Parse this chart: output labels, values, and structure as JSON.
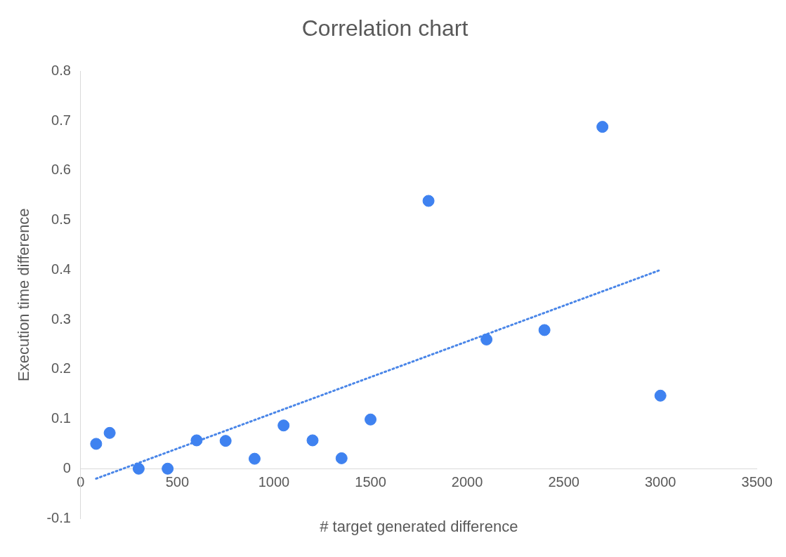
{
  "chart_data": {
    "type": "scatter",
    "title": "Correlation chart",
    "xlabel": "# target generated difference",
    "ylabel": "Execution time difference",
    "xlim": [
      0,
      3500
    ],
    "xticks": [
      0,
      500,
      1000,
      1500,
      2000,
      2500,
      3000,
      3500
    ],
    "ylim": [
      -0.1,
      0.8
    ],
    "yticks": [
      -0.1,
      0,
      0.1,
      0.2,
      0.3,
      0.4,
      0.5,
      0.6,
      0.7,
      0.8
    ],
    "grid": false,
    "legend": false,
    "series": [
      {
        "type": "scatter",
        "color": "#3f82f0",
        "marker": "circle",
        "x": [
          80,
          150,
          300,
          450,
          600,
          750,
          900,
          1050,
          1200,
          1350,
          1500,
          1800,
          2100,
          2400,
          2700,
          3000
        ],
        "values": [
          0.05,
          0.072,
          0,
          0,
          0.057,
          0.056,
          0.02,
          0.087,
          0.057,
          0.021,
          0.099,
          0.539,
          0.26,
          0.279,
          0.688,
          0.147
        ]
      },
      {
        "type": "line",
        "color": "#4a86e8",
        "marker": "none",
        "line_style": "dotted",
        "x": [
          80,
          3000
        ],
        "values": [
          -0.02,
          0.4
        ]
      }
    ]
  }
}
